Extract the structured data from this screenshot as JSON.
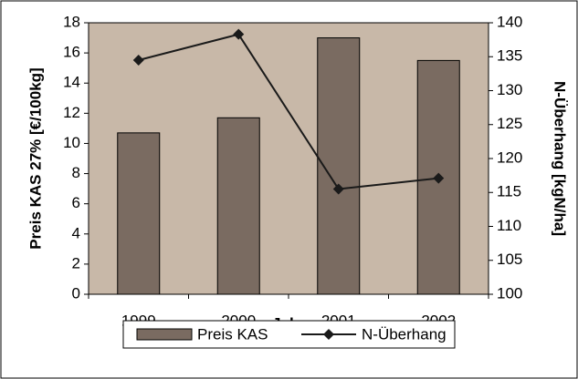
{
  "chart_data": {
    "type": "bar",
    "xlabel": "Jahr",
    "ylabel": "Preis KAS 27% [€/100kg]",
    "y2label": "N-Überhang [kgN/ha]",
    "categories": [
      "1999",
      "2000",
      "2001",
      "2002"
    ],
    "series": [
      {
        "name": "Preis KAS",
        "type": "bar",
        "color": "#7a6b61",
        "values": [
          10.7,
          11.7,
          17.0,
          15.5
        ]
      },
      {
        "name": "N-Überhang",
        "type": "line",
        "axis": "y2",
        "color": "#1a1a1a",
        "values": [
          134.5,
          138.3,
          115.5,
          117.1
        ]
      }
    ],
    "ylim": [
      0,
      18
    ],
    "yticks": [
      0,
      2,
      4,
      6,
      8,
      10,
      12,
      14,
      16,
      18
    ],
    "y2lim": [
      100,
      140
    ],
    "y2ticks": [
      100,
      105,
      110,
      115,
      120,
      125,
      130,
      135,
      140
    ],
    "background": "#c8b8a8",
    "legend": "bottom"
  }
}
